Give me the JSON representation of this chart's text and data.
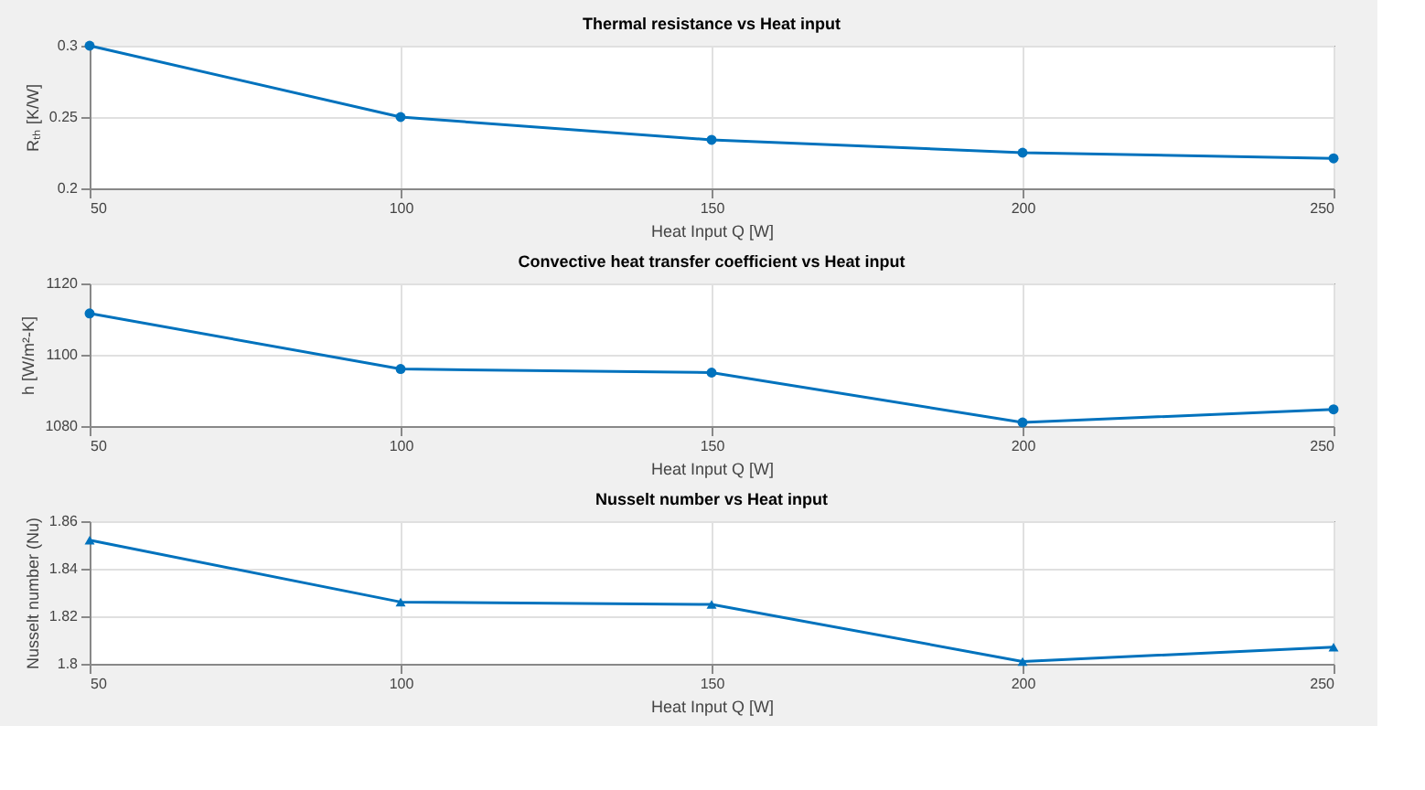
{
  "chart_data": [
    {
      "type": "line",
      "title": "Thermal resistance vs Heat input",
      "xlabel": "Heat Input Q [W]",
      "ylabel": "Rₜₕ [K/W]",
      "x": [
        50,
        100,
        150,
        200,
        250
      ],
      "series": [
        {
          "color": "#0072bd",
          "values": [
            0.3,
            0.25,
            0.234,
            0.225,
            0.221
          ]
        }
      ],
      "xlim": [
        50,
        250
      ],
      "xticks": [
        50,
        100,
        150,
        200,
        250
      ],
      "ylim": [
        0.2,
        0.3
      ],
      "yticks": [
        0.2,
        0.25,
        0.3
      ],
      "grid": true,
      "marker": "circle"
    },
    {
      "type": "line",
      "title": "Convective heat transfer coefficient vs Heat input",
      "xlabel": "Heat Input Q [W]",
      "ylabel": "h [W/m²-K]",
      "x": [
        50,
        100,
        150,
        200,
        250
      ],
      "series": [
        {
          "color": "#0072bd",
          "values": [
            1111.6,
            1096,
            1095,
            1081,
            1084.7
          ]
        }
      ],
      "xlim": [
        50,
        250
      ],
      "xticks": [
        50,
        100,
        150,
        200,
        250
      ],
      "ylim": [
        1080,
        1120
      ],
      "yticks": [
        1080,
        1100,
        1120
      ],
      "grid": true,
      "marker": "circle"
    },
    {
      "type": "line",
      "title": "Nusselt number vs Heat input",
      "xlabel": "Heat Input Q [W]",
      "ylabel": "Nusselt number (Nu)",
      "x": [
        50,
        100,
        150,
        200,
        250
      ],
      "series": [
        {
          "color": "#0072bd",
          "values": [
            1.852,
            1.826,
            1.825,
            1.801,
            1.807
          ]
        }
      ],
      "xlim": [
        50,
        250
      ],
      "xticks": [
        50,
        100,
        150,
        200,
        250
      ],
      "ylim": [
        1.8,
        1.86
      ],
      "yticks": [
        1.8,
        1.82,
        1.84,
        1.86
      ],
      "grid": true,
      "marker": "triangle"
    }
  ]
}
